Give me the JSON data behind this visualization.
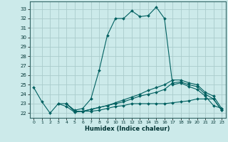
{
  "xlabel": "Humidex (Indice chaleur)",
  "bg_color": "#cceaea",
  "grid_color": "#aacccc",
  "line_color": "#006060",
  "xlim": [
    -0.5,
    23.5
  ],
  "ylim": [
    21.5,
    33.8
  ],
  "yticks": [
    22,
    23,
    24,
    25,
    26,
    27,
    28,
    29,
    30,
    31,
    32,
    33
  ],
  "xticks": [
    0,
    1,
    2,
    3,
    4,
    5,
    6,
    7,
    8,
    9,
    10,
    11,
    12,
    13,
    14,
    15,
    16,
    17,
    18,
    19,
    20,
    21,
    22,
    23
  ],
  "series": [
    [
      24.7,
      23.2,
      22.0,
      23.0,
      23.0,
      22.3,
      22.5,
      23.5,
      26.5,
      30.2,
      32.0,
      32.0,
      32.8,
      32.2,
      32.3,
      33.2,
      32.0,
      25.0,
      25.2,
      24.8,
      24.5,
      23.8,
      22.8,
      22.5
    ],
    [
      null,
      null,
      null,
      23.0,
      22.7,
      22.1,
      22.2,
      22.2,
      22.3,
      22.5,
      22.7,
      22.8,
      23.0,
      23.0,
      23.0,
      23.0,
      23.0,
      23.1,
      23.2,
      23.3,
      23.5,
      23.5,
      23.5,
      22.3
    ],
    [
      null,
      null,
      null,
      null,
      23.0,
      22.2,
      22.2,
      22.4,
      22.6,
      22.8,
      23.0,
      23.2,
      23.5,
      23.8,
      24.0,
      24.2,
      24.5,
      25.2,
      25.3,
      25.0,
      24.8,
      24.0,
      23.5,
      22.3
    ],
    [
      null,
      null,
      null,
      null,
      23.0,
      22.2,
      22.2,
      22.4,
      22.6,
      22.8,
      23.1,
      23.4,
      23.7,
      24.0,
      24.4,
      24.7,
      25.0,
      25.5,
      25.5,
      25.2,
      25.0,
      24.2,
      23.8,
      22.5
    ]
  ]
}
